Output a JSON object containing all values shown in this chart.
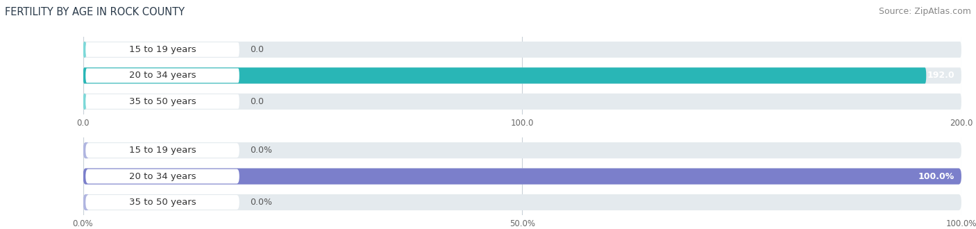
{
  "title": "FERTILITY BY AGE IN ROCK COUNTY",
  "source": "Source: ZipAtlas.com",
  "top_chart": {
    "categories": [
      "15 to 19 years",
      "20 to 34 years",
      "35 to 50 years"
    ],
    "values": [
      0.0,
      192.0,
      0.0
    ],
    "xlim": [
      0,
      200
    ],
    "xticks": [
      0.0,
      100.0,
      200.0
    ],
    "xtick_labels": [
      "0.0",
      "100.0",
      "200.0"
    ],
    "bar_color_full": "#29b6b6",
    "bar_color_small": "#7dd8d8",
    "bg_color": "#ffffff",
    "bar_bg_color": "#e4eaee"
  },
  "bottom_chart": {
    "categories": [
      "15 to 19 years",
      "20 to 34 years",
      "35 to 50 years"
    ],
    "values": [
      0.0,
      100.0,
      0.0
    ],
    "xlim": [
      0,
      100
    ],
    "xticks": [
      0.0,
      50.0,
      100.0
    ],
    "xtick_labels": [
      "0.0%",
      "50.0%",
      "100.0%"
    ],
    "bar_color_full": "#7b7fcb",
    "bar_color_small": "#b0b5e0",
    "bg_color": "#ffffff",
    "bar_bg_color": "#e4eaee"
  },
  "fig_bg_color": "#ffffff",
  "label_fontsize": 9.5,
  "value_fontsize": 9,
  "title_fontsize": 10.5,
  "source_fontsize": 9
}
